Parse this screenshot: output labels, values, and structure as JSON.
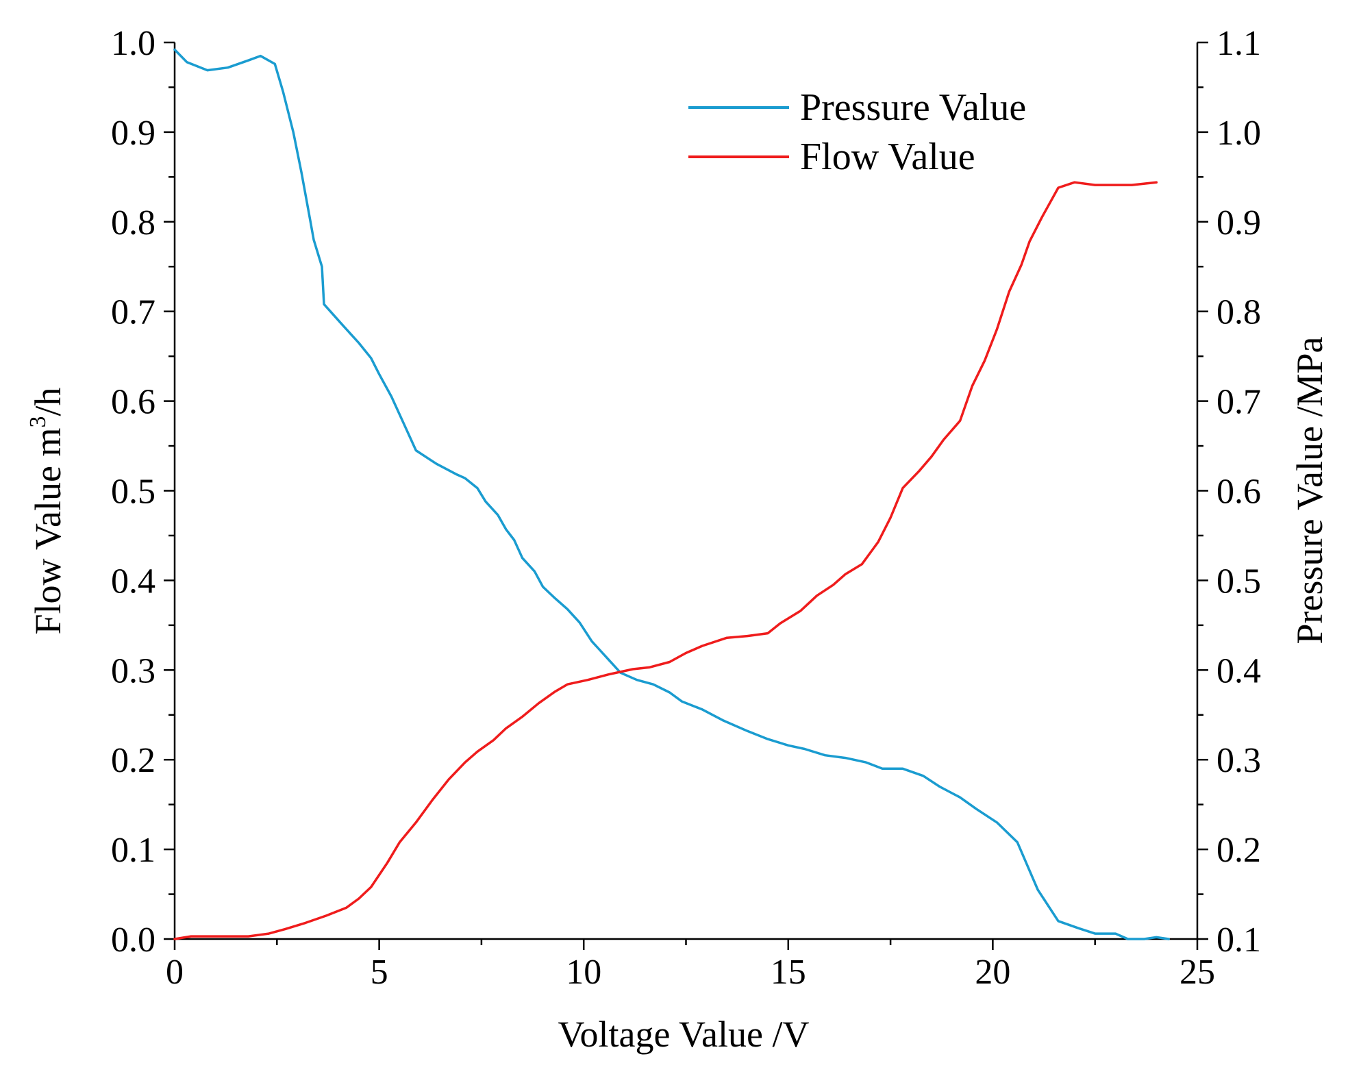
{
  "chart_data": {
    "type": "line",
    "xlabel": "Voltage Value /V",
    "ylabel_left": {
      "main": "Flow Value m",
      "sup": "3",
      "tail": "/h"
    },
    "ylabel_right": "Pressure Value /MPa",
    "xlim": [
      0,
      25
    ],
    "ylim_left": [
      0.0,
      1.0
    ],
    "ylim_right": [
      0.1,
      1.1
    ],
    "x_ticks": [
      "0",
      "5",
      "10",
      "15",
      "20",
      "25"
    ],
    "y_left_ticks": [
      "0.0",
      "0.1",
      "0.2",
      "0.3",
      "0.4",
      "0.5",
      "0.6",
      "0.7",
      "0.8",
      "0.9",
      "1.0"
    ],
    "y_right_ticks": [
      "0.1",
      "0.2",
      "0.3",
      "0.4",
      "0.5",
      "0.6",
      "0.7",
      "0.8",
      "0.9",
      "1.0",
      "1.1"
    ],
    "grid": false,
    "legend_position": "top-right",
    "series": [
      {
        "name": "Pressure Value",
        "axis": "right",
        "color": "#1a9cd0",
        "points": [
          [
            0.0,
            1.092
          ],
          [
            0.3,
            1.078
          ],
          [
            0.8,
            1.069
          ],
          [
            1.3,
            1.072
          ],
          [
            1.8,
            1.08
          ],
          [
            2.1,
            1.085
          ],
          [
            2.45,
            1.076
          ],
          [
            2.65,
            1.045
          ],
          [
            2.9,
            1.0
          ],
          [
            3.1,
            0.955
          ],
          [
            3.3,
            0.905
          ],
          [
            3.4,
            0.88
          ],
          [
            3.6,
            0.85
          ],
          [
            3.65,
            0.808
          ],
          [
            4.1,
            0.785
          ],
          [
            4.5,
            0.765
          ],
          [
            4.8,
            0.748
          ],
          [
            5.0,
            0.73
          ],
          [
            5.3,
            0.705
          ],
          [
            5.6,
            0.675
          ],
          [
            5.9,
            0.645
          ],
          [
            6.4,
            0.63
          ],
          [
            6.9,
            0.618
          ],
          [
            7.1,
            0.614
          ],
          [
            7.4,
            0.603
          ],
          [
            7.6,
            0.588
          ],
          [
            7.9,
            0.573
          ],
          [
            8.1,
            0.557
          ],
          [
            8.3,
            0.545
          ],
          [
            8.5,
            0.525
          ],
          [
            8.8,
            0.51
          ],
          [
            9.0,
            0.493
          ],
          [
            9.3,
            0.48
          ],
          [
            9.6,
            0.468
          ],
          [
            9.9,
            0.453
          ],
          [
            10.2,
            0.432
          ],
          [
            10.4,
            0.422
          ],
          [
            10.6,
            0.412
          ],
          [
            10.9,
            0.397
          ],
          [
            11.3,
            0.389
          ],
          [
            11.7,
            0.384
          ],
          [
            12.1,
            0.375
          ],
          [
            12.4,
            0.365
          ],
          [
            12.9,
            0.356
          ],
          [
            13.4,
            0.344
          ],
          [
            14.0,
            0.332
          ],
          [
            14.5,
            0.323
          ],
          [
            15.0,
            0.316
          ],
          [
            15.4,
            0.312
          ],
          [
            15.9,
            0.305
          ],
          [
            16.4,
            0.302
          ],
          [
            16.9,
            0.297
          ],
          [
            17.3,
            0.29
          ],
          [
            17.8,
            0.29
          ],
          [
            18.3,
            0.282
          ],
          [
            18.7,
            0.27
          ],
          [
            19.2,
            0.258
          ],
          [
            19.6,
            0.245
          ],
          [
            20.1,
            0.23
          ],
          [
            20.6,
            0.208
          ],
          [
            21.1,
            0.155
          ],
          [
            21.6,
            0.12
          ],
          [
            22.1,
            0.112
          ],
          [
            22.5,
            0.106
          ],
          [
            23.0,
            0.106
          ],
          [
            23.3,
            0.1
          ],
          [
            23.7,
            0.1
          ],
          [
            24.0,
            0.102
          ],
          [
            24.3,
            0.1
          ]
        ]
      },
      {
        "name": "Flow Value",
        "axis": "left",
        "color": "#ef1c1c",
        "points": [
          [
            0.0,
            0.0
          ],
          [
            0.4,
            0.003
          ],
          [
            0.9,
            0.003
          ],
          [
            1.5,
            0.003
          ],
          [
            1.8,
            0.003
          ],
          [
            2.3,
            0.006
          ],
          [
            2.7,
            0.011
          ],
          [
            3.2,
            0.018
          ],
          [
            3.7,
            0.026
          ],
          [
            4.2,
            0.035
          ],
          [
            4.5,
            0.045
          ],
          [
            4.8,
            0.058
          ],
          [
            5.2,
            0.085
          ],
          [
            5.5,
            0.108
          ],
          [
            5.9,
            0.13
          ],
          [
            6.3,
            0.155
          ],
          [
            6.7,
            0.178
          ],
          [
            7.1,
            0.197
          ],
          [
            7.4,
            0.209
          ],
          [
            7.8,
            0.222
          ],
          [
            8.1,
            0.235
          ],
          [
            8.5,
            0.248
          ],
          [
            8.9,
            0.263
          ],
          [
            9.3,
            0.276
          ],
          [
            9.6,
            0.284
          ],
          [
            10.1,
            0.289
          ],
          [
            10.6,
            0.295
          ],
          [
            11.2,
            0.301
          ],
          [
            11.6,
            0.303
          ],
          [
            12.1,
            0.309
          ],
          [
            12.5,
            0.319
          ],
          [
            12.9,
            0.327
          ],
          [
            13.5,
            0.336
          ],
          [
            14.0,
            0.338
          ],
          [
            14.5,
            0.341
          ],
          [
            14.8,
            0.352
          ],
          [
            15.3,
            0.366
          ],
          [
            15.7,
            0.383
          ],
          [
            16.1,
            0.395
          ],
          [
            16.4,
            0.407
          ],
          [
            16.8,
            0.418
          ],
          [
            17.2,
            0.443
          ],
          [
            17.5,
            0.47
          ],
          [
            17.8,
            0.503
          ],
          [
            18.2,
            0.522
          ],
          [
            18.5,
            0.538
          ],
          [
            18.8,
            0.557
          ],
          [
            19.2,
            0.578
          ],
          [
            19.5,
            0.617
          ],
          [
            19.8,
            0.645
          ],
          [
            20.1,
            0.68
          ],
          [
            20.4,
            0.722
          ],
          [
            20.7,
            0.752
          ],
          [
            20.9,
            0.778
          ],
          [
            21.2,
            0.805
          ],
          [
            21.6,
            0.838
          ],
          [
            22.0,
            0.844
          ],
          [
            22.5,
            0.841
          ],
          [
            23.0,
            0.841
          ],
          [
            23.4,
            0.841
          ],
          [
            24.0,
            0.844
          ]
        ]
      }
    ]
  }
}
